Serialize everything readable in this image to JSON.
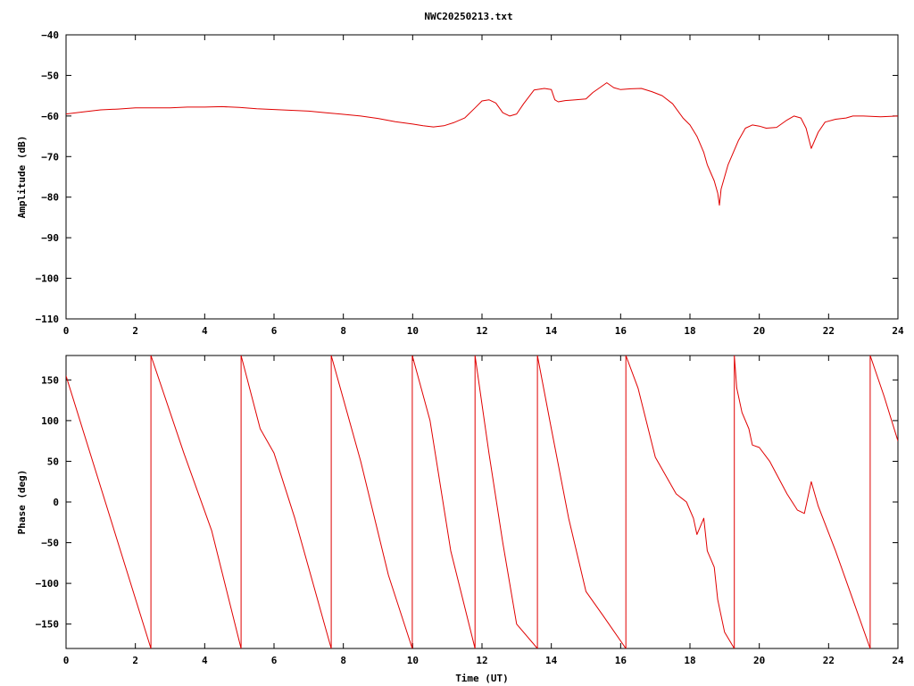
{
  "title": "NWC20250213.txt",
  "colors": {
    "trace": "#e00000",
    "axes": "#000000",
    "background": "#ffffff"
  },
  "chart_data": [
    {
      "type": "line",
      "ylabel": "Amplitude (dB)",
      "xlabel": "",
      "xlim": [
        0,
        24
      ],
      "ylim": [
        -110,
        -40
      ],
      "xticks": [
        0,
        2,
        4,
        6,
        8,
        10,
        12,
        14,
        16,
        18,
        20,
        22,
        24
      ],
      "yticks": [
        -110,
        -100,
        -90,
        -80,
        -70,
        -60,
        -50,
        -40
      ],
      "grid": false,
      "series": [
        {
          "x": [
            0,
            0.5,
            1,
            1.5,
            2,
            2.5,
            3,
            3.5,
            4,
            4.5,
            5,
            5.5,
            6,
            6.5,
            7,
            7.5,
            8,
            8.5,
            9,
            9.5,
            10,
            10.3,
            10.6,
            10.9,
            11.2,
            11.5,
            11.8,
            12,
            12.2,
            12.4,
            12.6,
            12.8,
            13,
            13.2,
            13.5,
            13.8,
            14,
            14.1,
            14.2,
            14.4,
            14.7,
            15,
            15.2,
            15.4,
            15.6,
            15.8,
            16,
            16.3,
            16.6,
            16.9,
            17.2,
            17.5,
            17.8,
            18,
            18.2,
            18.4,
            18.5,
            18.6,
            18.7,
            18.8,
            18.85,
            18.9,
            19,
            19.1,
            19.2,
            19.4,
            19.6,
            19.8,
            20,
            20.2,
            20.5,
            20.8,
            21,
            21.2,
            21.35,
            21.5,
            21.7,
            21.9,
            22.2,
            22.5,
            22.7,
            23,
            23.5,
            24
          ],
          "y": [
            -59.5,
            -59,
            -58.5,
            -58.3,
            -58,
            -58,
            -58,
            -57.8,
            -57.8,
            -57.7,
            -57.9,
            -58.2,
            -58.4,
            -58.6,
            -58.8,
            -59.2,
            -59.6,
            -60,
            -60.6,
            -61.4,
            -62,
            -62.4,
            -62.7,
            -62.4,
            -61.6,
            -60.5,
            -58,
            -56.3,
            -56,
            -56.8,
            -59.2,
            -60,
            -59.5,
            -57,
            -53.6,
            -53.2,
            -53.5,
            -56,
            -56.5,
            -56.2,
            -56,
            -55.8,
            -54.2,
            -53,
            -51.8,
            -53,
            -53.5,
            -53.3,
            -53.2,
            -54,
            -55,
            -57,
            -60.5,
            -62.2,
            -65,
            -69,
            -72,
            -74,
            -76,
            -79,
            -82,
            -78,
            -75,
            -72,
            -70,
            -66,
            -63,
            -62.2,
            -62.5,
            -63,
            -62.8,
            -61,
            -60,
            -60.5,
            -63,
            -68,
            -64,
            -61.5,
            -60.8,
            -60.5,
            -60,
            -60,
            -60.2,
            -60
          ]
        }
      ]
    },
    {
      "type": "line",
      "ylabel": "Phase (deg)",
      "xlabel": "Time (UT)",
      "xlim": [
        0,
        24
      ],
      "ylim": [
        -180,
        180
      ],
      "xticks": [
        0,
        2,
        4,
        6,
        8,
        10,
        12,
        14,
        16,
        18,
        20,
        22,
        24
      ],
      "yticks": [
        -150,
        -100,
        -50,
        0,
        50,
        100,
        150
      ],
      "grid": false,
      "series": [
        {
          "x": [
            0,
            2.45,
            2.45,
            3.4,
            4.2,
            5.05,
            5.05,
            5.6,
            6,
            6.6,
            7.65,
            7.65,
            8.5,
            9.3,
            9.99,
            9.99,
            10.5,
            11.1,
            11.8,
            11.8,
            12.2,
            12.6,
            13,
            13.6,
            13.6,
            14,
            14.5,
            15,
            15.5,
            16.15,
            16.15,
            16.5,
            17,
            17.6,
            17.9,
            18.1,
            18.2,
            18.4,
            18.5,
            18.7,
            18.8,
            19,
            19.28,
            19.28,
            19.35,
            19.5,
            19.7,
            19.8,
            20,
            20.3,
            20.8,
            21.1,
            21.3,
            21.5,
            21.7,
            22.2,
            22.7,
            23.2,
            23.2,
            23.6,
            24
          ],
          "y": [
            155,
            -180,
            180,
            60,
            -35,
            -180,
            180,
            90,
            60,
            -20,
            -180,
            180,
            50,
            -90,
            -180,
            180,
            100,
            -60,
            -180,
            180,
            60,
            -50,
            -150,
            -180,
            180,
            90,
            -20,
            -110,
            -140,
            -180,
            180,
            140,
            55,
            10,
            0,
            -20,
            -40,
            -20,
            -60,
            -80,
            -120,
            -160,
            -180,
            180,
            140,
            110,
            90,
            70,
            67,
            50,
            10,
            -10,
            -14,
            25,
            -5,
            -60,
            -120,
            -180,
            180,
            130,
            75
          ]
        }
      ]
    }
  ]
}
